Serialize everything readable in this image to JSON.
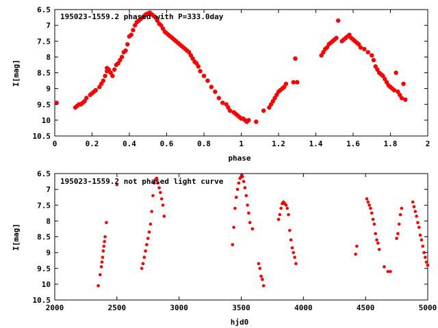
{
  "chart_data": [
    {
      "type": "scatter",
      "title": "195023-1559.2 phased with P=333.0day",
      "xlabel": "phase",
      "ylabel": "I[mag]",
      "xlim": [
        0,
        2
      ],
      "ylim": [
        10.5,
        6.5
      ],
      "y_inverted": true,
      "grid": false,
      "legend": "top-left",
      "xticks": [
        0,
        0.2,
        0.4,
        0.6,
        0.8,
        1,
        1.2,
        1.4,
        1.6,
        1.8,
        2
      ],
      "xtick_labels": [
        "0",
        "0.2",
        "0.4",
        "0.6",
        "0.8",
        "1",
        "1.2",
        "1.4",
        "1.6",
        "1.8",
        "2"
      ],
      "yticks": [
        6.5,
        7,
        7.5,
        8,
        8.5,
        9,
        9.5,
        10,
        10.5
      ],
      "ytick_labels": [
        "6.5",
        "7",
        "7.5",
        "8",
        "8.5",
        "9",
        "9.5",
        "10",
        "10.5"
      ],
      "color": "#ff0000",
      "series": [
        {
          "x": [
            0.01,
            0.11,
            0.12,
            0.13,
            0.14,
            0.15,
            0.16,
            0.17,
            0.19,
            0.2,
            0.21,
            0.22,
            0.24,
            0.25,
            0.26,
            0.27,
            0.28,
            0.28,
            0.29,
            0.3,
            0.31,
            0.32,
            0.33,
            0.34,
            0.35,
            0.36,
            0.37,
            0.38,
            0.39,
            0.4,
            0.41,
            0.42,
            0.43,
            0.44,
            0.45,
            0.46,
            0.47,
            0.48,
            0.49,
            0.5,
            0.51,
            0.52,
            0.53,
            0.54,
            0.55,
            0.56,
            0.57,
            0.58,
            0.59,
            0.6,
            0.61,
            0.62,
            0.63,
            0.64,
            0.65,
            0.66,
            0.67,
            0.68,
            0.69,
            0.7,
            0.71,
            0.72,
            0.73,
            0.74,
            0.75,
            0.76,
            0.77,
            0.78,
            0.8,
            0.82,
            0.84,
            0.86,
            0.88,
            0.9,
            0.92,
            0.93,
            0.94,
            0.96,
            0.97,
            0.98,
            0.99,
            1.0,
            1.01,
            1.02,
            1.03,
            1.04,
            1.08,
            1.12,
            1.15,
            1.16,
            1.17,
            1.18,
            1.19,
            1.2,
            1.21,
            1.22,
            1.23,
            1.24,
            1.28,
            1.29,
            1.3,
            1.43,
            1.44,
            1.45,
            1.46,
            1.47,
            1.48,
            1.49,
            1.5,
            1.51,
            1.52,
            1.54,
            1.55,
            1.56,
            1.57,
            1.58,
            1.59,
            1.6,
            1.61,
            1.62,
            1.63,
            1.64,
            1.66,
            1.68,
            1.7,
            1.71,
            1.72,
            1.73,
            1.74,
            1.75,
            1.76,
            1.77,
            1.78,
            1.79,
            1.8,
            1.81,
            1.82,
            1.83,
            1.84,
            1.85,
            1.86,
            1.87,
            1.88
          ],
          "y": [
            9.45,
            9.6,
            9.55,
            9.5,
            9.5,
            9.45,
            9.4,
            9.3,
            9.2,
            9.15,
            9.1,
            9.05,
            8.95,
            8.85,
            8.75,
            8.6,
            8.45,
            8.35,
            8.4,
            8.5,
            8.6,
            8.4,
            8.25,
            8.2,
            8.1,
            8.0,
            7.85,
            7.8,
            7.6,
            7.35,
            7.3,
            7.15,
            7.0,
            6.9,
            6.85,
            6.8,
            6.75,
            6.7,
            6.65,
            6.62,
            6.6,
            6.65,
            6.7,
            6.75,
            6.85,
            6.95,
            7.0,
            7.1,
            7.2,
            7.25,
            7.3,
            7.35,
            7.4,
            7.45,
            7.5,
            7.55,
            7.6,
            7.65,
            7.7,
            7.75,
            7.8,
            7.85,
            7.95,
            8.05,
            8.15,
            8.2,
            8.3,
            8.45,
            8.6,
            8.75,
            8.95,
            9.1,
            9.3,
            9.45,
            9.5,
            9.6,
            9.7,
            9.75,
            9.8,
            9.85,
            9.9,
            9.95,
            9.95,
            10.0,
            10.05,
            10.0,
            10.05,
            9.7,
            9.6,
            9.5,
            9.4,
            9.3,
            9.2,
            9.1,
            9.05,
            9.0,
            8.95,
            8.85,
            8.8,
            8.05,
            8.8,
            7.95,
            7.85,
            7.75,
            7.7,
            7.6,
            7.55,
            7.5,
            7.45,
            7.4,
            6.85,
            7.5,
            7.45,
            7.4,
            7.35,
            7.3,
            7.4,
            7.45,
            7.5,
            7.55,
            7.6,
            7.7,
            7.75,
            7.85,
            7.95,
            8.1,
            8.3,
            8.4,
            8.5,
            8.55,
            8.6,
            8.7,
            8.8,
            8.9,
            8.95,
            9.0,
            9.05,
            8.5,
            9.1,
            9.2,
            9.3,
            8.85,
            9.35
          ]
        }
      ]
    },
    {
      "type": "scatter",
      "title": "195023-1559.2 not phased light curve",
      "xlabel": "hjd0",
      "ylabel": "I[mag]",
      "xlim": [
        2000,
        5000
      ],
      "ylim": [
        10.5,
        6.5
      ],
      "y_inverted": true,
      "grid": false,
      "legend": "top-left",
      "xticks": [
        2000,
        2500,
        3000,
        3500,
        4000,
        4500,
        5000
      ],
      "xtick_labels": [
        "2000",
        "2500",
        "3000",
        "3500",
        "4000",
        "4500",
        "5000"
      ],
      "yticks": [
        6.5,
        7,
        7.5,
        8,
        8.5,
        9,
        9.5,
        10,
        10.5
      ],
      "ytick_labels": [
        "6.5",
        "7",
        "7.5",
        "8",
        "8.5",
        "9",
        "9.5",
        "10",
        "10.5"
      ],
      "color": "#ff0000",
      "series": [
        {
          "x": [
            2350,
            2365,
            2375,
            2380,
            2385,
            2390,
            2395,
            2400,
            2405,
            2415,
            2500,
            2700,
            2710,
            2720,
            2730,
            2740,
            2750,
            2760,
            2770,
            2780,
            2790,
            2800,
            2810,
            2820,
            2830,
            2840,
            2850,
            2860,
            2870,
            2880,
            3430,
            3440,
            3450,
            3460,
            3470,
            3480,
            3490,
            3500,
            3505,
            3510,
            3520,
            3530,
            3540,
            3550,
            3560,
            3570,
            3590,
            3640,
            3650,
            3660,
            3670,
            3680,
            3800,
            3810,
            3820,
            3830,
            3840,
            3850,
            3860,
            3870,
            3880,
            3890,
            3900,
            3910,
            3920,
            3930,
            3940,
            4420,
            4430,
            4510,
            4520,
            4530,
            4540,
            4550,
            4560,
            4570,
            4580,
            4590,
            4600,
            4610,
            4650,
            4680,
            4700,
            4750,
            4760,
            4770,
            4780,
            4790,
            4880,
            4890,
            4900,
            4910,
            4920,
            4930,
            4940,
            4950,
            4960,
            4970,
            4980,
            4990,
            5000
          ],
          "y": [
            10.05,
            9.7,
            9.45,
            9.3,
            9.15,
            8.95,
            8.8,
            8.65,
            8.5,
            8.05,
            6.85,
            9.5,
            9.35,
            9.15,
            8.95,
            8.75,
            8.55,
            8.35,
            8.1,
            7.7,
            7.2,
            6.8,
            6.7,
            6.65,
            6.8,
            6.95,
            7.1,
            7.3,
            7.5,
            7.85,
            8.75,
            8.2,
            7.6,
            7.25,
            7.0,
            6.8,
            6.65,
            6.6,
            6.55,
            6.6,
            6.75,
            6.95,
            7.2,
            7.5,
            7.75,
            8.05,
            8.25,
            9.35,
            9.5,
            9.75,
            9.85,
            10.05,
            7.95,
            7.8,
            7.6,
            7.45,
            7.4,
            7.45,
            7.5,
            7.6,
            7.8,
            8.3,
            8.6,
            8.85,
            9.0,
            9.15,
            9.35,
            9.05,
            8.8,
            7.3,
            7.4,
            7.5,
            7.6,
            7.75,
            7.95,
            8.1,
            8.4,
            8.6,
            8.7,
            8.9,
            9.45,
            9.6,
            9.6,
            8.55,
            8.4,
            8.1,
            7.8,
            7.6,
            7.4,
            7.55,
            7.7,
            7.85,
            8.05,
            8.2,
            8.45,
            8.6,
            8.8,
            9.0,
            9.15,
            9.3,
            9.4
          ]
        }
      ]
    }
  ]
}
